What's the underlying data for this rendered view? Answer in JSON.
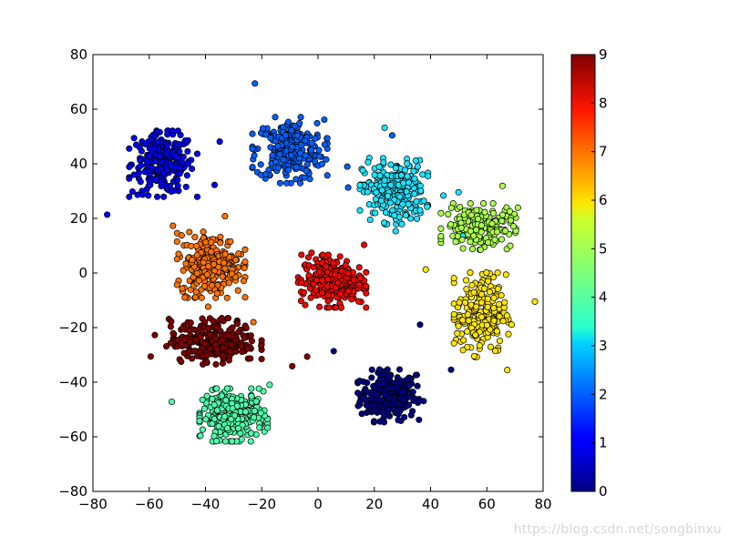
{
  "chart_data": {
    "type": "scatter",
    "title": "",
    "xlabel": "",
    "ylabel": "",
    "xlim": [
      -80,
      80
    ],
    "ylim": [
      -80,
      80
    ],
    "x_ticks": [
      -80,
      -60,
      -40,
      -20,
      0,
      20,
      40,
      60,
      80
    ],
    "y_ticks": [
      -80,
      -60,
      -40,
      -20,
      0,
      20,
      40,
      60,
      80
    ],
    "x_tick_labels": [
      "−80",
      "−60",
      "−40",
      "−20",
      "0",
      "20",
      "40",
      "60",
      "80"
    ],
    "y_tick_labels": [
      "−80",
      "−60",
      "−40",
      "−20",
      "0",
      "20",
      "40",
      "60",
      "80"
    ],
    "grid": false,
    "colormap": "jet",
    "colorbar": {
      "min": 0,
      "max": 9,
      "ticks": [
        0,
        1,
        2,
        3,
        4,
        5,
        6,
        7,
        8,
        9
      ],
      "tick_labels": [
        "0",
        "1",
        "2",
        "3",
        "4",
        "5",
        "6",
        "7",
        "8",
        "9"
      ]
    },
    "clusters": [
      {
        "label": 0,
        "color": "#00007f",
        "center": [
          25,
          -45
        ],
        "spread": [
          9,
          8
        ],
        "count": 260
      },
      {
        "label": 1,
        "color": "#0000f1",
        "center": [
          -55,
          40
        ],
        "spread": [
          10,
          10
        ],
        "count": 240
      },
      {
        "label": 2,
        "color": "#0060ff",
        "center": [
          -10,
          45
        ],
        "spread": [
          11,
          10
        ],
        "count": 250
      },
      {
        "label": 3,
        "color": "#1ce3ff",
        "center": [
          27,
          30
        ],
        "spread": [
          10,
          10
        ],
        "count": 250
      },
      {
        "label": 4,
        "color": "#4dffaa",
        "center": [
          -30,
          -52
        ],
        "spread": [
          10,
          8
        ],
        "count": 260
      },
      {
        "label": 5,
        "color": "#aaff4d",
        "center": [
          57,
          17
        ],
        "spread": [
          11,
          7
        ],
        "count": 200
      },
      {
        "label": 6,
        "color": "#ffe500",
        "center": [
          58,
          -15
        ],
        "spread": [
          8,
          13
        ],
        "count": 240
      },
      {
        "label": 7,
        "color": "#ff7300",
        "center": [
          -38,
          3
        ],
        "spread": [
          10,
          10
        ],
        "count": 270
      },
      {
        "label": 8,
        "color": "#f10800",
        "center": [
          5,
          -3
        ],
        "spread": [
          10,
          8
        ],
        "count": 240
      },
      {
        "label": 9,
        "color": "#7f0000",
        "center": [
          -37,
          -25
        ],
        "spread": [
          14,
          7
        ],
        "count": 260
      }
    ],
    "marker": {
      "edge_color": "#000000",
      "shape": "circle"
    }
  },
  "watermark": "https://blog.csdn.net/songbinxu"
}
